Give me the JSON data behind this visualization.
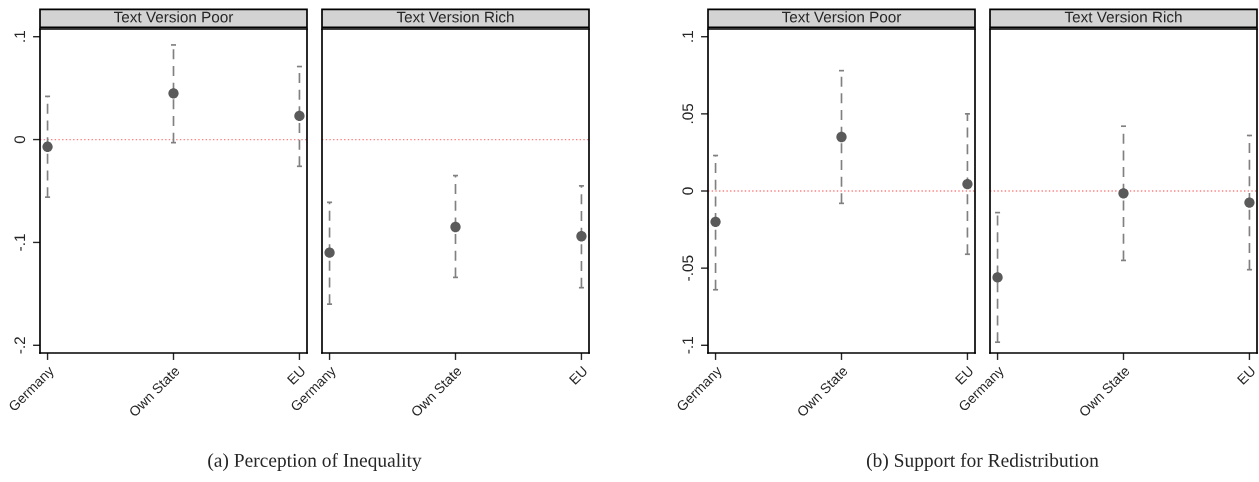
{
  "chart_data": [
    {
      "type": "scatter",
      "title": "Text Version Poor",
      "categories": [
        "Germany",
        "Own State",
        "EU"
      ],
      "values": [
        -0.007,
        0.045,
        0.023
      ],
      "errors": [
        [
          -0.056,
          0.042
        ],
        [
          -0.003,
          0.092
        ],
        [
          -0.026,
          0.071
        ]
      ],
      "color": "#5a5a5a",
      "marker": "circle",
      "ylim": [
        -0.2075,
        0.1075
      ],
      "yticks": [
        {
          "value": 0.1,
          "label": ".1"
        },
        0,
        {
          "value": -0.1,
          "label": "-.1"
        },
        {
          "value": -0.2,
          "label": "-.2"
        }
      ],
      "ref_lines": [
        {
          "axis": "y",
          "value": 0,
          "color": "#ff8080",
          "line_style": "dotted"
        }
      ],
      "grid": false,
      "annotations": [
        "(a) Perception of Inequality"
      ]
    },
    {
      "type": "scatter",
      "title": "Text Version Rich",
      "categories": [
        "Germany",
        "Own State",
        "EU"
      ],
      "values": [
        -0.11,
        -0.085,
        -0.094
      ],
      "errors": [
        [
          -0.16,
          -0.061
        ],
        [
          -0.134,
          -0.035
        ],
        [
          -0.144,
          -0.045
        ]
      ],
      "color": "#5a5a5a",
      "marker": "circle",
      "ylim": [
        -0.2075,
        0.1075
      ],
      "tick_labels": "x",
      "ref_lines": [
        {
          "axis": "y",
          "value": 0,
          "color": "#ff8080",
          "line_style": "dotted"
        }
      ],
      "grid": false
    },
    {
      "type": "scatter",
      "title": "Text Version Poor",
      "categories": [
        "Germany",
        "Own State",
        "EU"
      ],
      "values": [
        -0.02,
        0.035,
        0.0045
      ],
      "errors": [
        [
          -0.064,
          0.023
        ],
        [
          -0.008,
          0.078
        ],
        [
          -0.041,
          0.05
        ]
      ],
      "color": "#5a5a5a",
      "marker": "circle",
      "ylim": [
        -0.105,
        0.105
      ],
      "yticks": [
        {
          "value": 0.1,
          "label": ".1"
        },
        {
          "value": 0.05,
          "label": ".05"
        },
        0,
        {
          "value": -0.05,
          "label": "-.05"
        },
        {
          "value": -0.1,
          "label": "-.1"
        }
      ],
      "ref_lines": [
        {
          "axis": "y",
          "value": 0,
          "color": "#ff8080",
          "line_style": "dotted"
        }
      ],
      "grid": false,
      "annotations": [
        "(b) Support for Redistribution"
      ]
    },
    {
      "type": "scatter",
      "title": "Text Version Rich",
      "categories": [
        "Germany",
        "Own State",
        "EU"
      ],
      "values": [
        -0.056,
        -0.0015,
        -0.0075
      ],
      "errors": [
        [
          -0.098,
          -0.014
        ],
        [
          -0.045,
          0.042
        ],
        [
          -0.051,
          0.036
        ]
      ],
      "color": "#5a5a5a",
      "marker": "circle",
      "ylim": [
        -0.105,
        0.105
      ],
      "tick_labels": "x",
      "ref_lines": [
        {
          "axis": "y",
          "value": 0,
          "color": "#ff8080",
          "line_style": "dotted"
        }
      ],
      "grid": false
    }
  ]
}
